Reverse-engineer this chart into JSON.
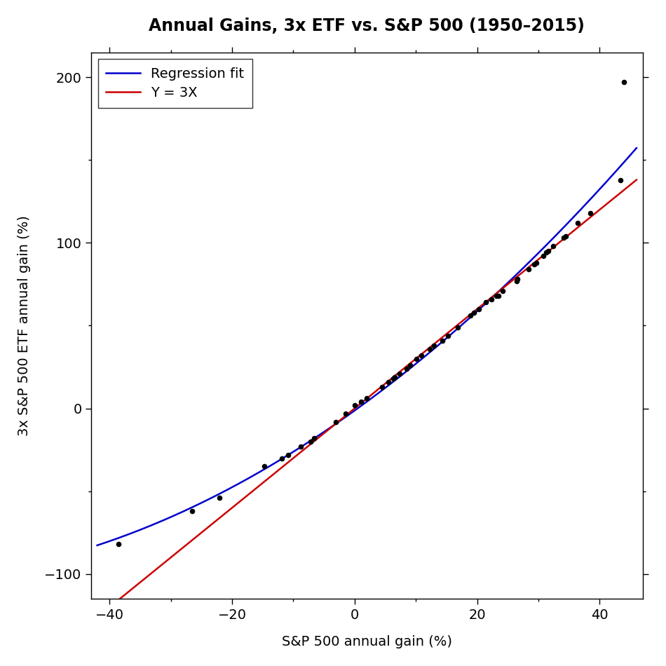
{
  "title": "Annual Gains, 3x ETF vs. S&P 500 (1950–2015)",
  "xlabel": "S&P 500 annual gain (%)",
  "ylabel": "3x S&P 500 ETF annual gain (%)",
  "xlim": [
    -43,
    47
  ],
  "ylim": [
    -115,
    215
  ],
  "xticks": [
    -40,
    -20,
    0,
    20,
    40
  ],
  "yticks": [
    -100,
    0,
    100,
    200
  ],
  "sp500_x": [
    -38.5,
    -26.5,
    -22.1,
    -14.7,
    -11.9,
    -10.8,
    -8.8,
    -7.2,
    -6.6,
    -3.1,
    -1.5,
    0.0,
    1.1,
    2.0,
    4.5,
    5.5,
    6.3,
    6.6,
    7.4,
    8.5,
    9.1,
    10.1,
    10.9,
    12.3,
    13.0,
    14.3,
    15.2,
    16.8,
    18.9,
    19.5,
    20.3,
    21.4,
    22.3,
    23.1,
    23.5,
    24.2,
    26.4,
    26.6,
    28.4,
    29.3,
    29.6,
    30.8,
    31.2,
    31.6,
    32.4,
    34.1,
    34.4,
    36.4,
    38.5,
    43.4,
    44.0
  ],
  "upro_y": [
    -82.0,
    -62.0,
    -54.0,
    -35.0,
    -30.0,
    -28.0,
    -23.0,
    -20.0,
    -18.0,
    -8.0,
    -3.0,
    2.0,
    4.0,
    6.0,
    13.0,
    16.0,
    18.0,
    19.0,
    21.0,
    24.0,
    26.0,
    30.0,
    32.0,
    36.0,
    38.0,
    41.0,
    44.0,
    49.0,
    56.0,
    58.0,
    60.0,
    64.0,
    66.0,
    68.0,
    68.0,
    71.0,
    77.0,
    78.0,
    84.0,
    87.0,
    88.0,
    92.0,
    94.0,
    95.0,
    98.0,
    103.0,
    104.0,
    112.0,
    118.0,
    138.0,
    197.0
  ],
  "regression_color": "#0000CC",
  "line_y3x_color": "#CC0000",
  "point_color": "#000000",
  "background_color": "#FFFFFF",
  "legend_labels": [
    "Regression fit",
    "Y = 3X"
  ],
  "title_fontsize": 17,
  "label_fontsize": 14,
  "tick_fontsize": 14,
  "legend_fontsize": 14
}
